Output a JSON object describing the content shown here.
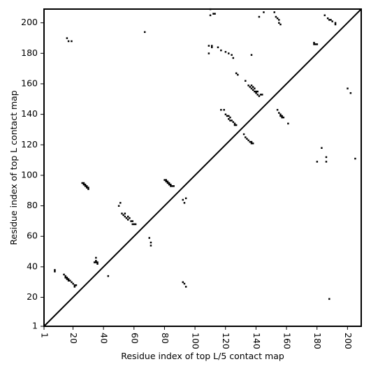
{
  "chart_data": {
    "type": "scatter",
    "xlabel": "Residue index of top L/5 contact map",
    "ylabel": "Residue index of top L contact map",
    "xlim": [
      1,
      209
    ],
    "ylim": [
      1,
      209
    ],
    "x_ticks": [
      1,
      20,
      40,
      60,
      80,
      100,
      120,
      140,
      160,
      180,
      200
    ],
    "y_ticks": [
      1,
      20,
      40,
      60,
      80,
      100,
      120,
      140,
      160,
      180,
      200
    ],
    "diagonal": true,
    "grid": false,
    "marker_color": "#000000",
    "series": [
      {
        "region": "lower-left (top L/5 contacts)",
        "points": [
          [
            8,
            37
          ],
          [
            8,
            38
          ],
          [
            14,
            35
          ],
          [
            15,
            34
          ],
          [
            15,
            33
          ],
          [
            16,
            33
          ],
          [
            16,
            32
          ],
          [
            17,
            32
          ],
          [
            17,
            31
          ],
          [
            18,
            31
          ],
          [
            19,
            30
          ],
          [
            20,
            29
          ],
          [
            21,
            28
          ],
          [
            21,
            27
          ],
          [
            22,
            28
          ],
          [
            26,
            95
          ],
          [
            27,
            94
          ],
          [
            27,
            95
          ],
          [
            28,
            94
          ],
          [
            28,
            93
          ],
          [
            29,
            93
          ],
          [
            29,
            92
          ],
          [
            30,
            92
          ],
          [
            30,
            91
          ],
          [
            34,
            43
          ],
          [
            35,
            43
          ],
          [
            35,
            44
          ],
          [
            36,
            43
          ],
          [
            36,
            42
          ],
          [
            35,
            46
          ],
          [
            43,
            34
          ],
          [
            50,
            80
          ],
          [
            51,
            82
          ],
          [
            52,
            75
          ],
          [
            53,
            74
          ],
          [
            54,
            75
          ],
          [
            54,
            73
          ],
          [
            55,
            72
          ],
          [
            56,
            73
          ],
          [
            56,
            71
          ],
          [
            57,
            72
          ],
          [
            58,
            70
          ],
          [
            59,
            70
          ],
          [
            59,
            68
          ],
          [
            60,
            68
          ],
          [
            61,
            68
          ],
          [
            70,
            59
          ],
          [
            71,
            56
          ],
          [
            71,
            54
          ],
          [
            80,
            97
          ],
          [
            81,
            97
          ],
          [
            81,
            96
          ],
          [
            82,
            96
          ],
          [
            82,
            95
          ],
          [
            83,
            95
          ],
          [
            83,
            94
          ],
          [
            84,
            94
          ],
          [
            84,
            93
          ],
          [
            85,
            93
          ],
          [
            86,
            93
          ],
          [
            92,
            30
          ],
          [
            93,
            29
          ],
          [
            94,
            27
          ],
          [
            92,
            84
          ],
          [
            94,
            85
          ],
          [
            93,
            82
          ]
        ]
      },
      {
        "region": "upper-right (top L contacts)",
        "points": [
          [
            16,
            190
          ],
          [
            17,
            188
          ],
          [
            19,
            188
          ],
          [
            67,
            194
          ],
          [
            109,
            185
          ],
          [
            109,
            180
          ],
          [
            110,
            209
          ],
          [
            110,
            205
          ],
          [
            111,
            185
          ],
          [
            111,
            184
          ],
          [
            112,
            206
          ],
          [
            113,
            206
          ],
          [
            115,
            184
          ],
          [
            117,
            182
          ],
          [
            120,
            181
          ],
          [
            122,
            180
          ],
          [
            124,
            179
          ],
          [
            125,
            177
          ],
          [
            127,
            167
          ],
          [
            128,
            166
          ],
          [
            117,
            143
          ],
          [
            119,
            143
          ],
          [
            120,
            140
          ],
          [
            121,
            139
          ],
          [
            122,
            139
          ],
          [
            122,
            137
          ],
          [
            123,
            138
          ],
          [
            123,
            136
          ],
          [
            124,
            136
          ],
          [
            125,
            135
          ],
          [
            126,
            134
          ],
          [
            126,
            133
          ],
          [
            127,
            133
          ],
          [
            132,
            127
          ],
          [
            133,
            125
          ],
          [
            134,
            124
          ],
          [
            135,
            123
          ],
          [
            136,
            122
          ],
          [
            137,
            122
          ],
          [
            137,
            121
          ],
          [
            138,
            121
          ],
          [
            133,
            162
          ],
          [
            135,
            159
          ],
          [
            136,
            158
          ],
          [
            137,
            159
          ],
          [
            137,
            157
          ],
          [
            138,
            158
          ],
          [
            138,
            156
          ],
          [
            139,
            157
          ],
          [
            139,
            155
          ],
          [
            140,
            155
          ],
          [
            140,
            154
          ],
          [
            141,
            155
          ],
          [
            141,
            153
          ],
          [
            142,
            152
          ],
          [
            143,
            153
          ],
          [
            144,
            153
          ],
          [
            137,
            179
          ],
          [
            142,
            204
          ],
          [
            145,
            207
          ],
          [
            152,
            207
          ],
          [
            153,
            204
          ],
          [
            154,
            203
          ],
          [
            155,
            202
          ],
          [
            155,
            200
          ],
          [
            156,
            199
          ],
          [
            154,
            143
          ],
          [
            155,
            141
          ],
          [
            156,
            140
          ],
          [
            156,
            139
          ],
          [
            157,
            139
          ],
          [
            157,
            138
          ],
          [
            158,
            138
          ],
          [
            161,
            134
          ],
          [
            178,
            187
          ],
          [
            178,
            186
          ],
          [
            179,
            186
          ],
          [
            180,
            186
          ],
          [
            180,
            109
          ],
          [
            183,
            118
          ],
          [
            185,
            205
          ],
          [
            186,
            109
          ],
          [
            186,
            112
          ],
          [
            187,
            203
          ],
          [
            188,
            202
          ],
          [
            189,
            202
          ],
          [
            190,
            201
          ],
          [
            192,
            200
          ],
          [
            192,
            199
          ],
          [
            188,
            19
          ],
          [
            200,
            157
          ],
          [
            202,
            154
          ],
          [
            205,
            111
          ]
        ]
      }
    ]
  }
}
